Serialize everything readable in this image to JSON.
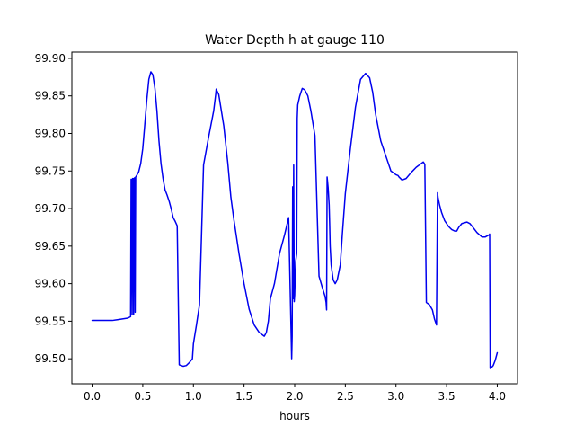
{
  "chart_data": {
    "type": "line",
    "title": "Water Depth h at gauge 110",
    "xlabel": "hours",
    "ylabel": "",
    "xlim": [
      -0.2,
      4.2
    ],
    "ylim": [
      99.4667,
      99.9083
    ],
    "x_ticks": [
      0.0,
      0.5,
      1.0,
      1.5,
      2.0,
      2.5,
      3.0,
      3.5,
      4.0
    ],
    "x_tick_labels": [
      "0.0",
      "0.5",
      "1.0",
      "1.5",
      "2.0",
      "2.5",
      "3.0",
      "3.5",
      "4.0"
    ],
    "y_ticks": [
      99.5,
      99.55,
      99.6,
      99.65,
      99.7,
      99.75,
      99.8,
      99.85,
      99.9
    ],
    "y_tick_labels": [
      "99.50",
      "99.55",
      "99.60",
      "99.65",
      "99.70",
      "99.75",
      "99.80",
      "99.85",
      "99.90"
    ],
    "grid": false,
    "legend": "none",
    "colors": {
      "series": "#0000ee",
      "axes": "#000000",
      "background": "#ffffff"
    },
    "series": [
      {
        "x": [
          0.0,
          0.1,
          0.2,
          0.25,
          0.3,
          0.35,
          0.38,
          0.385,
          0.39,
          0.395,
          0.4,
          0.405,
          0.41,
          0.415,
          0.42,
          0.425,
          0.43,
          0.44,
          0.46,
          0.48,
          0.5,
          0.52,
          0.54,
          0.56,
          0.58,
          0.6,
          0.62,
          0.64,
          0.66,
          0.68,
          0.7,
          0.72,
          0.74,
          0.76,
          0.78,
          0.8,
          0.82,
          0.84,
          0.86,
          0.88,
          0.9,
          0.93,
          0.96,
          0.99,
          0.995,
          1.0,
          1.03,
          1.06,
          1.1,
          1.15,
          1.2,
          1.22,
          1.225,
          1.25,
          1.3,
          1.34,
          1.37,
          1.4,
          1.45,
          1.5,
          1.55,
          1.6,
          1.65,
          1.7,
          1.72,
          1.74,
          1.76,
          1.8,
          1.85,
          1.9,
          1.94,
          1.97,
          1.975,
          1.98,
          1.985,
          1.99,
          1.995,
          2.0,
          2.005,
          2.01,
          2.02,
          2.025,
          2.03,
          2.05,
          2.07,
          2.075,
          2.1,
          2.13,
          2.16,
          2.2,
          2.24,
          2.27,
          2.3,
          2.31,
          2.315,
          2.32,
          2.33,
          2.34,
          2.345,
          2.35,
          2.36,
          2.38,
          2.4,
          2.42,
          2.45,
          2.47,
          2.5,
          2.55,
          2.6,
          2.65,
          2.7,
          2.74,
          2.77,
          2.8,
          2.85,
          2.9,
          2.95,
          3.0,
          3.02,
          3.03,
          3.06,
          3.1,
          3.15,
          3.2,
          3.25,
          3.27,
          3.28,
          3.285,
          3.3,
          3.33,
          3.36,
          3.38,
          3.4,
          3.41,
          3.415,
          3.43,
          3.45,
          3.48,
          3.52,
          3.55,
          3.58,
          3.6,
          3.62,
          3.65,
          3.7,
          3.73,
          3.76,
          3.8,
          3.85,
          3.88,
          3.92,
          3.925,
          3.93,
          3.94,
          3.96,
          3.98,
          4.0
        ],
        "y": [
          99.551,
          99.551,
          99.551,
          99.552,
          99.553,
          99.554,
          99.556,
          99.739,
          99.739,
          99.559,
          99.74,
          99.74,
          99.559,
          99.74,
          99.741,
          99.562,
          99.742,
          99.744,
          99.749,
          99.76,
          99.78,
          99.812,
          99.845,
          99.872,
          99.882,
          99.878,
          99.86,
          99.83,
          99.79,
          99.76,
          99.74,
          99.725,
          99.718,
          99.71,
          99.7,
          99.688,
          99.683,
          99.677,
          99.492,
          99.491,
          99.49,
          99.491,
          99.495,
          99.5,
          99.51,
          99.52,
          99.545,
          99.572,
          99.758,
          99.795,
          99.83,
          99.852,
          99.859,
          99.852,
          99.81,
          99.76,
          99.715,
          99.685,
          99.64,
          99.6,
          99.566,
          99.545,
          99.535,
          99.53,
          99.535,
          99.55,
          99.58,
          99.6,
          99.64,
          99.665,
          99.688,
          99.5,
          99.53,
          99.729,
          99.58,
          99.758,
          99.576,
          99.585,
          99.61,
          99.63,
          99.64,
          99.82,
          99.838,
          99.85,
          99.858,
          99.86,
          99.858,
          99.85,
          99.83,
          99.797,
          99.61,
          99.596,
          99.583,
          99.575,
          99.565,
          99.742,
          99.728,
          99.705,
          99.68,
          99.65,
          99.625,
          99.605,
          99.6,
          99.605,
          99.625,
          99.665,
          99.72,
          99.78,
          99.835,
          99.872,
          99.88,
          99.874,
          99.855,
          99.825,
          99.79,
          99.77,
          99.75,
          99.745,
          99.744,
          99.742,
          99.738,
          99.74,
          99.748,
          99.755,
          99.76,
          99.762,
          99.76,
          99.759,
          99.575,
          99.572,
          99.565,
          99.553,
          99.545,
          99.721,
          99.715,
          99.705,
          99.695,
          99.684,
          99.676,
          99.672,
          99.67,
          99.67,
          99.675,
          99.68,
          99.682,
          99.68,
          99.675,
          99.668,
          99.662,
          99.662,
          99.665,
          99.666,
          99.487,
          99.488,
          99.491,
          99.498,
          99.508
        ]
      }
    ]
  }
}
